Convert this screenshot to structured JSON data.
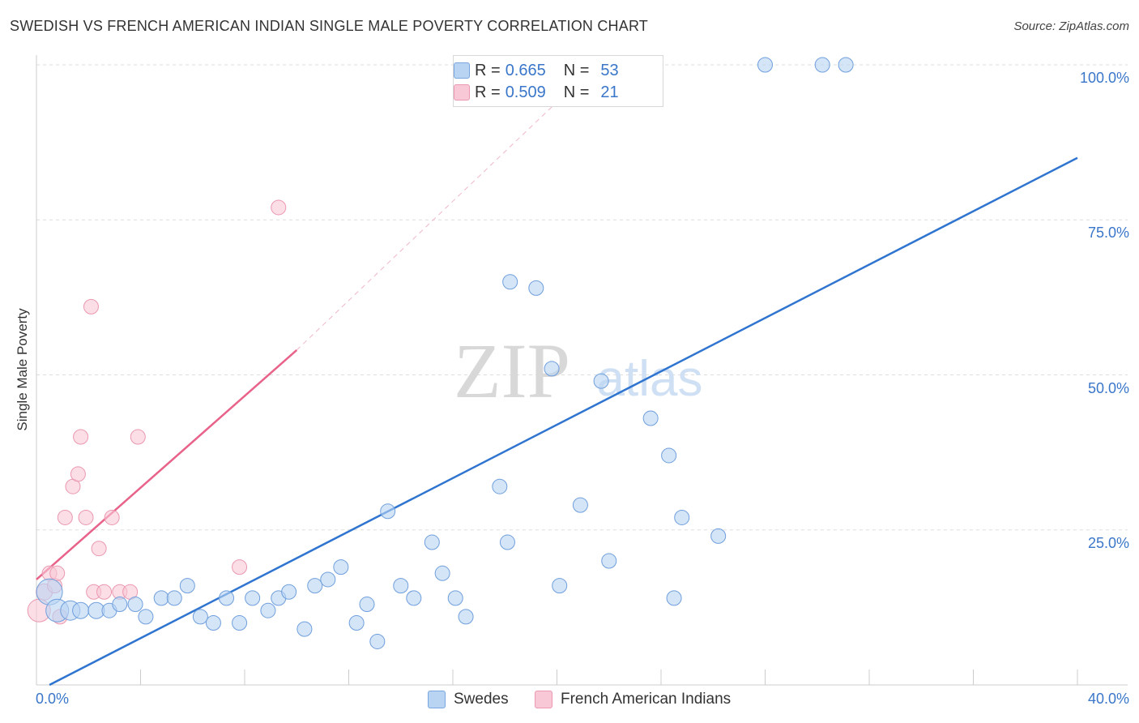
{
  "header": {
    "title": "SWEDISH VS FRENCH AMERICAN INDIAN SINGLE MALE POVERTY CORRELATION CHART",
    "source": "Source: ZipAtlas.com"
  },
  "legend": {
    "rows": [
      {
        "r_label": "R =",
        "r_value": "0.665",
        "n_label": "N =",
        "n_value": "53",
        "color": "#b9d3f3"
      },
      {
        "r_label": "R =",
        "r_value": "0.509",
        "n_label": "N =",
        "n_value": "21",
        "color": "#f8c8d6"
      }
    ]
  },
  "bottom_legend": {
    "items": [
      {
        "label": "Swedes",
        "color": "#b9d3f3"
      },
      {
        "label": "French American Indians",
        "color": "#f8c8d6"
      }
    ]
  },
  "watermark": {
    "zip": "ZIP",
    "atlas": "atlas"
  },
  "chart_data": {
    "type": "scatter",
    "xlabel": "",
    "ylabel": "Single Male Poverty",
    "x_tick_labels": [
      "0.0%",
      "40.0%"
    ],
    "y_tick_labels": [
      "100.0%",
      "75.0%",
      "50.0%",
      "25.0%"
    ],
    "y_ticks": [
      100,
      75,
      50,
      25
    ],
    "xlim": [
      0,
      40
    ],
    "ylim": [
      0,
      100
    ],
    "grid": true,
    "colors": {
      "swedes": "#2f75d0",
      "swedes_fill": "#b9d3f3",
      "french": "#e8628a",
      "french_fill": "#f8c8d6",
      "grid": "#dddddd",
      "axis_text": "#3a76c9"
    },
    "series": [
      {
        "name": "Swedes",
        "trend": {
          "x": [
            0.5,
            40
          ],
          "y": [
            0,
            85
          ]
        },
        "points": [
          [
            0.5,
            15,
            16
          ],
          [
            0.8,
            12,
            14
          ],
          [
            1.3,
            12,
            12
          ],
          [
            1.7,
            12,
            10
          ],
          [
            2.3,
            12,
            10
          ],
          [
            2.8,
            12,
            9
          ],
          [
            3.2,
            13,
            9
          ],
          [
            3.8,
            13,
            9
          ],
          [
            4.2,
            11,
            9
          ],
          [
            4.8,
            14,
            9
          ],
          [
            5.3,
            14,
            9
          ],
          [
            5.8,
            16,
            9
          ],
          [
            6.3,
            11,
            9
          ],
          [
            6.8,
            10,
            9
          ],
          [
            7.3,
            14,
            9
          ],
          [
            7.8,
            10,
            9
          ],
          [
            8.3,
            14,
            9
          ],
          [
            8.9,
            12,
            9
          ],
          [
            9.3,
            14,
            9
          ],
          [
            9.7,
            15,
            9
          ],
          [
            10.3,
            9,
            9
          ],
          [
            10.7,
            16,
            9
          ],
          [
            11.2,
            17,
            9
          ],
          [
            11.7,
            19,
            9
          ],
          [
            12.3,
            10,
            9
          ],
          [
            12.7,
            13,
            9
          ],
          [
            13.1,
            7,
            9
          ],
          [
            13.5,
            28,
            9
          ],
          [
            14.0,
            16,
            9
          ],
          [
            14.5,
            14,
            9
          ],
          [
            15.2,
            23,
            9
          ],
          [
            15.6,
            18,
            9
          ],
          [
            16.1,
            14,
            9
          ],
          [
            16.5,
            11,
            9
          ],
          [
            17.8,
            32,
            9
          ],
          [
            18.1,
            23,
            9
          ],
          [
            18.2,
            65,
            9
          ],
          [
            19.2,
            64,
            9
          ],
          [
            19.8,
            51,
            9
          ],
          [
            20.1,
            16,
            9
          ],
          [
            20.9,
            29,
            9
          ],
          [
            21.7,
            49,
            9
          ],
          [
            22.0,
            20,
            9
          ],
          [
            23.6,
            43,
            9
          ],
          [
            24.3,
            37,
            9
          ],
          [
            24.5,
            14,
            9
          ],
          [
            24.8,
            27,
            9
          ],
          [
            26.2,
            24,
            9
          ],
          [
            19.0,
            100,
            9
          ],
          [
            22.1,
            100,
            9
          ],
          [
            28.0,
            100,
            9
          ],
          [
            30.2,
            100,
            9
          ],
          [
            31.1,
            100,
            9
          ]
        ]
      },
      {
        "name": "French American Indians",
        "trend": {
          "x": [
            0,
            10
          ],
          "y": [
            17,
            54
          ]
        },
        "trend_extension": {
          "x": [
            10,
            21.5
          ],
          "y": [
            54,
            100
          ]
        },
        "points": [
          [
            0.1,
            12,
            14
          ],
          [
            0.3,
            15,
            10
          ],
          [
            0.5,
            18,
            9
          ],
          [
            0.7,
            16,
            9
          ],
          [
            0.8,
            18,
            9
          ],
          [
            0.9,
            11,
            9
          ],
          [
            1.1,
            27,
            9
          ],
          [
            1.4,
            32,
            9
          ],
          [
            1.6,
            34,
            9
          ],
          [
            1.7,
            40,
            9
          ],
          [
            1.9,
            27,
            9
          ],
          [
            2.1,
            61,
            9
          ],
          [
            2.2,
            15,
            9
          ],
          [
            2.4,
            22,
            9
          ],
          [
            2.6,
            15,
            9
          ],
          [
            2.9,
            27,
            9
          ],
          [
            3.2,
            15,
            9
          ],
          [
            3.6,
            15,
            9
          ],
          [
            3.9,
            40,
            9
          ],
          [
            7.8,
            19,
            9
          ],
          [
            9.3,
            77,
            9
          ]
        ]
      }
    ]
  }
}
